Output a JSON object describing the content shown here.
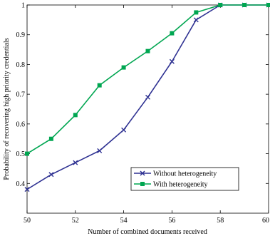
{
  "chart_data": {
    "type": "line",
    "title": "",
    "xlabel": "Number of combined documents received",
    "ylabel": "Probability of recovering high priority credentials",
    "xlim": [
      50,
      60
    ],
    "ylim": [
      0.3,
      1.0
    ],
    "xticks": [
      50,
      52,
      54,
      56,
      58,
      60
    ],
    "yticks": [
      0.4,
      0.5,
      0.6,
      0.7,
      0.8,
      0.9,
      1
    ],
    "xtick_labels": [
      "50",
      "52",
      "54",
      "56",
      "58",
      "60"
    ],
    "ytick_labels": [
      "0.4",
      "0.5",
      "0.6",
      "0.7",
      "0.8",
      "0.9",
      "1"
    ],
    "grid": false,
    "legend_position": "lower-right",
    "x": [
      50,
      51,
      52,
      53,
      54,
      55,
      56,
      57,
      58,
      59,
      60
    ],
    "series": [
      {
        "name": "Without heterogeneity",
        "color": "#2e3192",
        "marker": "x",
        "values": [
          0.38,
          0.43,
          0.47,
          0.51,
          0.58,
          0.69,
          0.81,
          0.95,
          1.0,
          1.0,
          1.0
        ]
      },
      {
        "name": "With heterogeneity",
        "color": "#00a651",
        "marker": "square",
        "values": [
          0.5,
          0.55,
          0.63,
          0.73,
          0.79,
          0.845,
          0.905,
          0.975,
          1.0,
          1.0,
          1.0
        ]
      }
    ]
  }
}
